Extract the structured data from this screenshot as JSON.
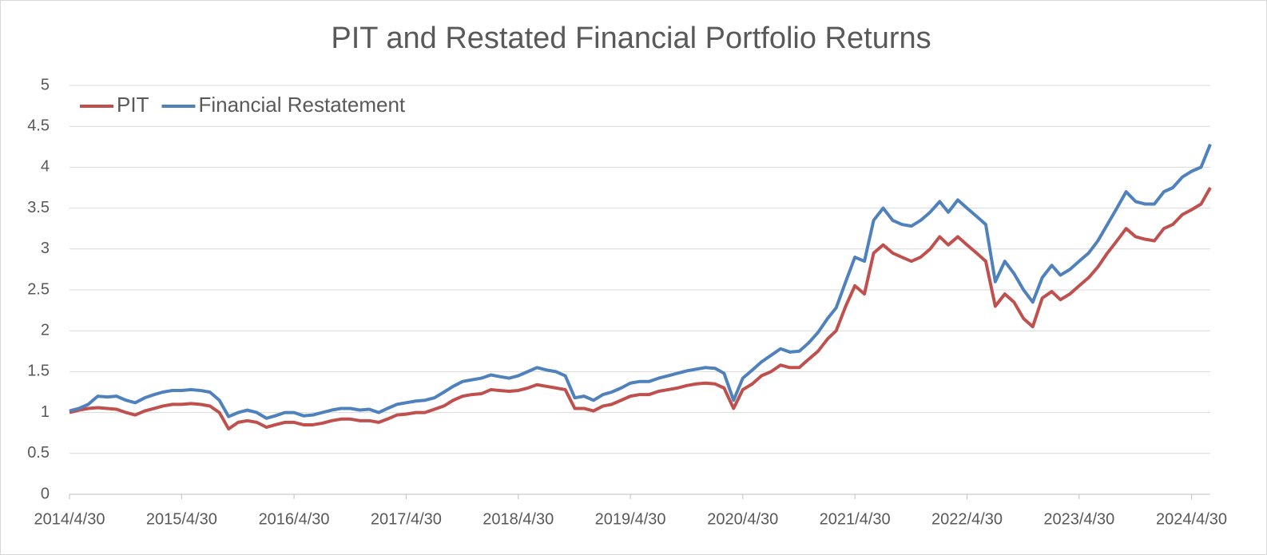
{
  "chart_data": {
    "type": "line",
    "title": "PIT and Restated Financial Portfolio Returns",
    "x": [
      "2014/4/30",
      "2014/5/31",
      "2014/6/30",
      "2014/7/31",
      "2014/8/31",
      "2014/9/30",
      "2014/10/31",
      "2014/11/30",
      "2014/12/31",
      "2015/1/31",
      "2015/2/28",
      "2015/3/31",
      "2015/4/30",
      "2015/5/31",
      "2015/6/30",
      "2015/7/31",
      "2015/8/31",
      "2015/9/30",
      "2015/10/31",
      "2015/11/30",
      "2015/12/31",
      "2016/1/31",
      "2016/2/29",
      "2016/3/31",
      "2016/4/30",
      "2016/5/31",
      "2016/6/30",
      "2016/7/31",
      "2016/8/31",
      "2016/9/30",
      "2016/10/31",
      "2016/11/30",
      "2016/12/31",
      "2017/1/31",
      "2017/2/28",
      "2017/3/31",
      "2017/4/30",
      "2017/5/31",
      "2017/6/30",
      "2017/7/31",
      "2017/8/31",
      "2017/9/30",
      "2017/10/31",
      "2017/11/30",
      "2017/12/31",
      "2018/1/31",
      "2018/2/28",
      "2018/3/31",
      "2018/4/30",
      "2018/5/31",
      "2018/6/30",
      "2018/7/31",
      "2018/8/31",
      "2018/9/30",
      "2018/10/31",
      "2018/11/30",
      "2018/12/31",
      "2019/1/31",
      "2019/2/28",
      "2019/3/31",
      "2019/4/30",
      "2019/5/31",
      "2019/6/30",
      "2019/7/31",
      "2019/8/31",
      "2019/9/30",
      "2019/10/31",
      "2019/11/30",
      "2019/12/31",
      "2020/1/31",
      "2020/2/29",
      "2020/3/31",
      "2020/4/30",
      "2020/5/31",
      "2020/6/30",
      "2020/7/31",
      "2020/8/31",
      "2020/9/30",
      "2020/10/31",
      "2020/11/30",
      "2020/12/31",
      "2021/1/31",
      "2021/2/28",
      "2021/3/31",
      "2021/4/30",
      "2021/5/31",
      "2021/6/30",
      "2021/7/31",
      "2021/8/31",
      "2021/9/30",
      "2021/10/31",
      "2021/11/30",
      "2021/12/31",
      "2022/1/31",
      "2022/2/28",
      "2022/3/31",
      "2022/4/30",
      "2022/5/31",
      "2022/6/30",
      "2022/7/31",
      "2022/8/31",
      "2022/9/30",
      "2022/10/31",
      "2022/11/30",
      "2022/12/31",
      "2023/1/31",
      "2023/2/28",
      "2023/3/31",
      "2023/4/30",
      "2023/5/31",
      "2023/6/30",
      "2023/7/31",
      "2023/8/31",
      "2023/9/30",
      "2023/10/31",
      "2023/11/30",
      "2023/12/31",
      "2024/1/31",
      "2024/2/29",
      "2024/3/31",
      "2024/4/30",
      "2024/5/31",
      "2024/6/30"
    ],
    "series": [
      {
        "name": "PIT",
        "color": "#c0504d",
        "values": [
          1.0,
          1.03,
          1.05,
          1.06,
          1.05,
          1.04,
          1.0,
          0.97,
          1.02,
          1.05,
          1.08,
          1.1,
          1.1,
          1.11,
          1.1,
          1.08,
          1.0,
          0.8,
          0.88,
          0.9,
          0.88,
          0.82,
          0.85,
          0.88,
          0.88,
          0.85,
          0.85,
          0.87,
          0.9,
          0.92,
          0.92,
          0.9,
          0.9,
          0.88,
          0.92,
          0.97,
          0.98,
          1.0,
          1.0,
          1.04,
          1.08,
          1.15,
          1.2,
          1.22,
          1.23,
          1.28,
          1.27,
          1.26,
          1.27,
          1.3,
          1.34,
          1.32,
          1.3,
          1.28,
          1.05,
          1.05,
          1.02,
          1.08,
          1.1,
          1.15,
          1.2,
          1.22,
          1.22,
          1.26,
          1.28,
          1.3,
          1.33,
          1.35,
          1.36,
          1.35,
          1.3,
          1.05,
          1.28,
          1.35,
          1.45,
          1.5,
          1.58,
          1.55,
          1.55,
          1.65,
          1.75,
          1.9,
          2.0,
          2.3,
          2.55,
          2.45,
          2.95,
          3.05,
          2.95,
          2.9,
          2.85,
          2.9,
          3.0,
          3.15,
          3.05,
          3.15,
          3.05,
          2.95,
          2.85,
          2.3,
          2.45,
          2.35,
          2.15,
          2.05,
          2.4,
          2.48,
          2.38,
          2.45,
          2.55,
          2.65,
          2.78,
          2.95,
          3.1,
          3.25,
          3.15,
          3.12,
          3.1,
          3.25,
          3.3,
          3.42,
          3.48,
          3.55,
          3.75
        ]
      },
      {
        "name": "Financial Restatement",
        "color": "#4f81bd",
        "values": [
          1.02,
          1.05,
          1.1,
          1.2,
          1.19,
          1.2,
          1.15,
          1.12,
          1.18,
          1.22,
          1.25,
          1.27,
          1.27,
          1.28,
          1.27,
          1.25,
          1.15,
          0.95,
          1.0,
          1.03,
          1.0,
          0.93,
          0.96,
          1.0,
          1.0,
          0.96,
          0.97,
          1.0,
          1.03,
          1.05,
          1.05,
          1.03,
          1.04,
          1.0,
          1.05,
          1.1,
          1.12,
          1.14,
          1.15,
          1.18,
          1.25,
          1.32,
          1.38,
          1.4,
          1.42,
          1.46,
          1.44,
          1.42,
          1.45,
          1.5,
          1.55,
          1.52,
          1.5,
          1.45,
          1.18,
          1.2,
          1.15,
          1.22,
          1.25,
          1.3,
          1.36,
          1.38,
          1.38,
          1.42,
          1.45,
          1.48,
          1.51,
          1.53,
          1.55,
          1.54,
          1.48,
          1.15,
          1.42,
          1.52,
          1.62,
          1.7,
          1.78,
          1.74,
          1.75,
          1.85,
          1.98,
          2.15,
          2.28,
          2.6,
          2.9,
          2.85,
          3.35,
          3.5,
          3.35,
          3.3,
          3.28,
          3.35,
          3.45,
          3.58,
          3.45,
          3.6,
          3.5,
          3.4,
          3.3,
          2.6,
          2.85,
          2.7,
          2.5,
          2.35,
          2.65,
          2.8,
          2.68,
          2.75,
          2.85,
          2.95,
          3.1,
          3.3,
          3.5,
          3.7,
          3.58,
          3.55,
          3.55,
          3.7,
          3.75,
          3.88,
          3.95,
          4.0,
          4.28
        ]
      }
    ],
    "xlim": [
      "2014/4/30",
      "2024/6/30"
    ],
    "xticks": [
      "2014/4/30",
      "2015/4/30",
      "2016/4/30",
      "2017/4/30",
      "2018/4/30",
      "2019/4/30",
      "2020/4/30",
      "2021/4/30",
      "2022/4/30",
      "2023/4/30",
      "2024/4/30"
    ],
    "ylim": [
      0,
      5
    ],
    "yticks": [
      0,
      0.5,
      1,
      1.5,
      2,
      2.5,
      3,
      3.5,
      4,
      4.5,
      5
    ],
    "grid": true,
    "legend": "top-left"
  }
}
